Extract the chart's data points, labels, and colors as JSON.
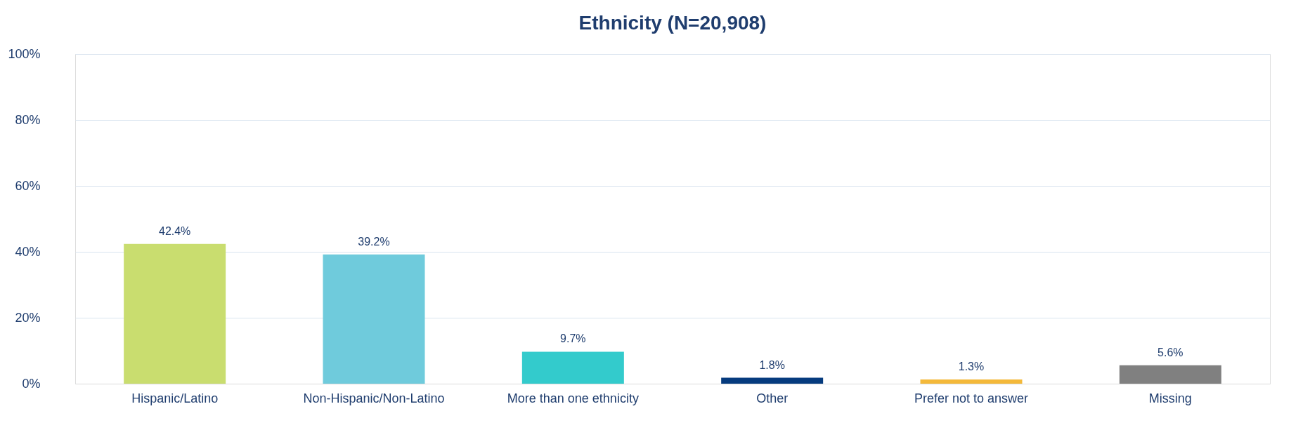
{
  "chart_data": {
    "type": "bar",
    "title": "Ethnicity (N=20,908)",
    "categories": [
      "Hispanic/Latino",
      "Non-Hispanic/Non-Latino",
      "More than one ethnicity",
      "Other",
      "Prefer not to answer",
      "Missing"
    ],
    "values": [
      42.4,
      39.2,
      9.7,
      1.8,
      1.3,
      5.6
    ],
    "colors": [
      "#c9dd6f",
      "#6fcbdc",
      "#33cbcc",
      "#063b7e",
      "#f4b93a",
      "#808080"
    ],
    "value_labels": [
      "42.4%",
      "39.2%",
      "9.7%",
      "1.8%",
      "1.3%",
      "5.6%"
    ],
    "ylim": [
      0,
      100
    ],
    "yticks": [
      {
        "value": 0,
        "label": "0%"
      },
      {
        "value": 20,
        "label": "20%"
      },
      {
        "value": 40,
        "label": "40%"
      },
      {
        "value": 60,
        "label": "60%"
      },
      {
        "value": 80,
        "label": "80%"
      },
      {
        "value": 100,
        "label": "100%"
      }
    ],
    "grid": "y"
  }
}
